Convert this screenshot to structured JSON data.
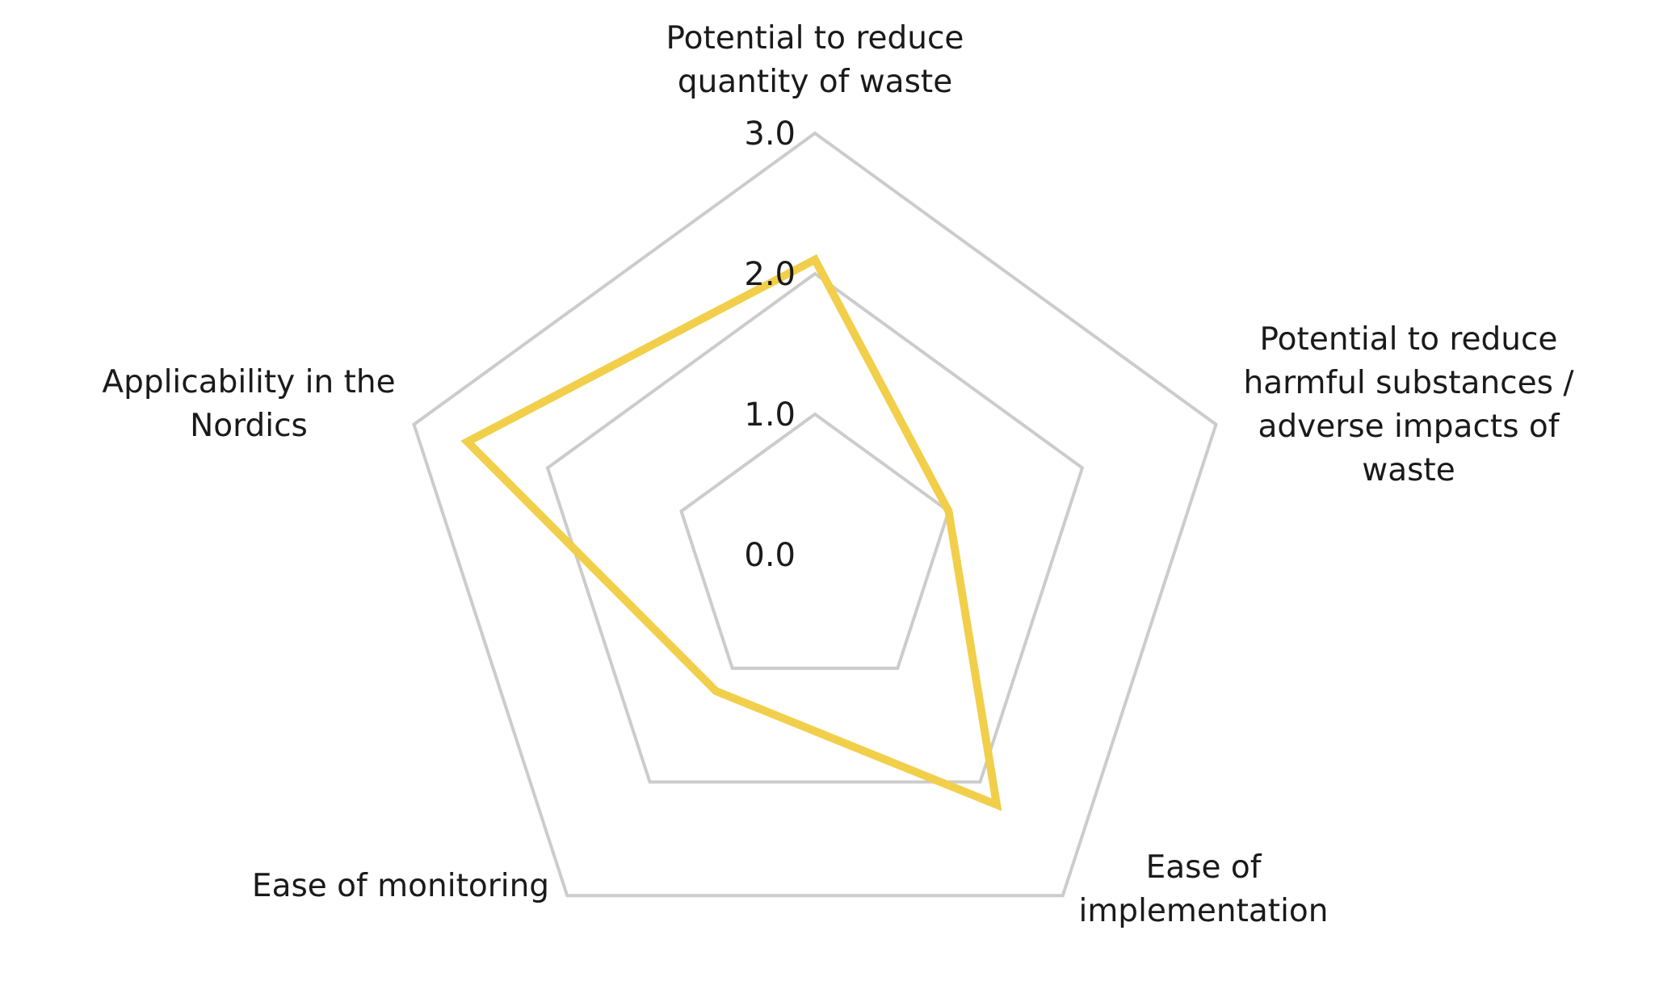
{
  "chart_data": {
    "type": "radar",
    "axes": [
      "Potential to reduce quantity of waste",
      "Potential to reduce harmful substances / adverse impacts of waste",
      "Ease of implementation",
      "Ease of monitoring",
      "Applicability in the Nordics"
    ],
    "axis_label_lines": [
      [
        "Potential to reduce",
        "quantity of waste"
      ],
      [
        "Potential to reduce",
        "harmful substances /",
        "adverse impacts of",
        "waste"
      ],
      [
        "Ease of",
        "implementation"
      ],
      [
        "Ease of monitoring"
      ],
      [
        "Applicability in the",
        "Nordics"
      ]
    ],
    "ticks": [
      "0.0",
      "1.0",
      "2.0",
      "3.0"
    ],
    "rlim": [
      0,
      3
    ],
    "series": [
      {
        "values": [
          2.1,
          1.0,
          2.2,
          1.2,
          2.6
        ],
        "color": "#f2cf4a"
      }
    ],
    "grid": true,
    "grid_color": "#cccccc",
    "legend": "none"
  }
}
